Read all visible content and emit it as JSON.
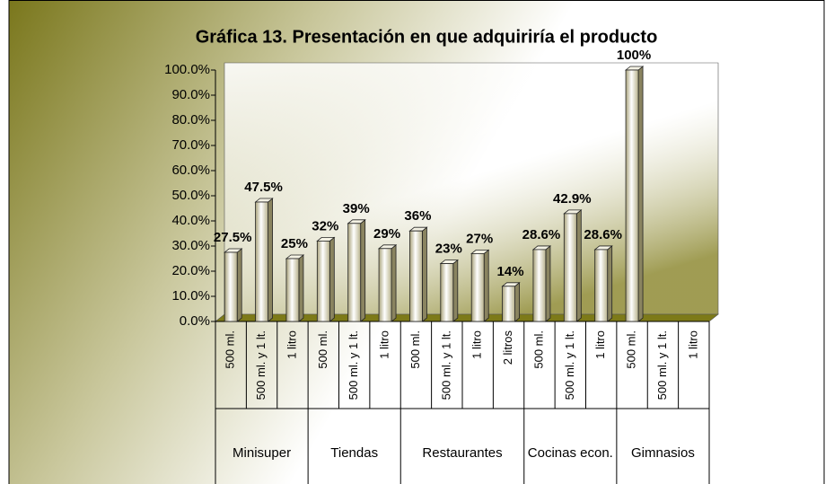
{
  "chart_data": {
    "type": "bar",
    "title": "Gráfica 13. Presentación en que adquiriría el producto",
    "groups": [
      {
        "name": "Minisuper",
        "categories": [
          "500 ml.",
          "500 ml. y 1 lt.",
          "1 litro"
        ]
      },
      {
        "name": "Tiendas",
        "categories": [
          "500 ml.",
          "500 ml. y 1 lt.",
          "1 litro"
        ]
      },
      {
        "name": "Restaurantes",
        "categories": [
          "500 ml.",
          "500 ml. y 1 lt.",
          "1 litro",
          "2 litros"
        ]
      },
      {
        "name": "Cocinas econ.",
        "categories": [
          "500 ml.",
          "500 ml. y 1 lt.",
          "1 litro"
        ]
      },
      {
        "name": "Gimnasios",
        "categories": [
          "500 ml.",
          "500 ml. y 1 lt.",
          "1 litro"
        ]
      }
    ],
    "values": [
      27.5,
      47.5,
      25,
      32,
      39,
      29,
      36,
      23,
      27,
      14,
      28.6,
      42.9,
      28.6,
      100,
      null,
      null
    ],
    "value_labels": [
      "27.5%",
      "47.5%",
      "25%",
      "32%",
      "39%",
      "29%",
      "36%",
      "23%",
      "27%",
      "14%",
      "28.6%",
      "42.9%",
      "28.6%",
      "100%",
      null,
      null
    ],
    "color": "#e8e4c8",
    "ylim": [
      0,
      100
    ],
    "yticks": [
      {
        "value": 0,
        "label": "0.0%"
      },
      {
        "value": 10,
        "label": "10.0%"
      },
      {
        "value": 20,
        "label": "20.0%"
      },
      {
        "value": 30,
        "label": "30.0%"
      },
      {
        "value": 40,
        "label": "40.0%"
      },
      {
        "value": 50,
        "label": "50.0%"
      },
      {
        "value": 60,
        "label": "60.0%"
      },
      {
        "value": 70,
        "label": "70.0%"
      },
      {
        "value": 80,
        "label": "80.0%"
      },
      {
        "value": 90,
        "label": "90.0%"
      },
      {
        "value": 100,
        "label": "100.0%"
      }
    ],
    "grid": false
  }
}
